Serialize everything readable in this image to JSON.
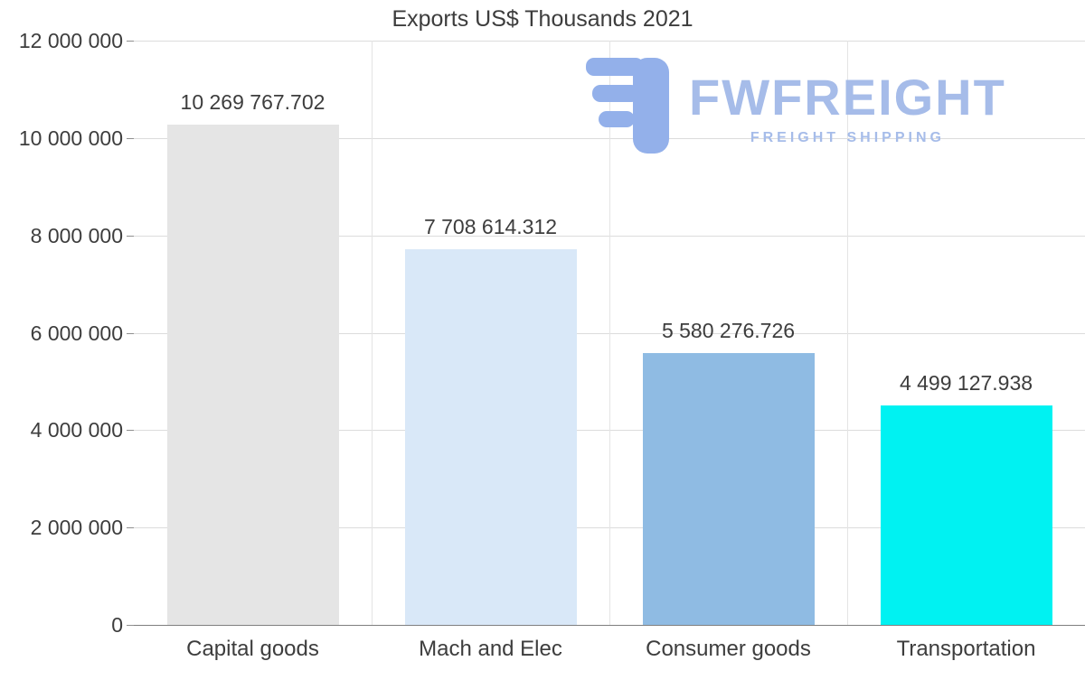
{
  "title": "Exports US$ Thousands 2021",
  "watermark": {
    "brand": "FWFREIGHT",
    "tagline": "FREIGHT SHIPPING",
    "brand_color": "#a6bce9",
    "icon_color": "#93b0ea"
  },
  "chart_data": {
    "type": "bar",
    "title": "Exports US$ Thousands 2021",
    "categories": [
      "Capital goods",
      "Mach and Elec",
      "Consumer goods",
      "Transportation"
    ],
    "values": [
      10269767.702,
      7708614.312,
      5580276.726,
      4499127.938
    ],
    "value_labels": [
      "10 269 767.702",
      "7 708 614.312",
      "5 580 276.726",
      "4 499 127.938"
    ],
    "bar_colors": [
      "#e5e5e5",
      "#d9e8f8",
      "#8fbbe3",
      "#00f2f2"
    ],
    "xlabel": "",
    "ylabel": "",
    "ylim": [
      0,
      12000000
    ],
    "ytick_step": 2000000,
    "ytick_labels": [
      "0",
      "2 000 000",
      "4 000 000",
      "6 000 000",
      "8 000 000",
      "10 000 000",
      "12 000 000"
    ],
    "grid": true,
    "legend": "none",
    "grid_color": "#dcdcdc",
    "axis_color": "#7f7f7f",
    "tick_color": "#8f8f8f",
    "text_color": "#3d3d3d"
  }
}
